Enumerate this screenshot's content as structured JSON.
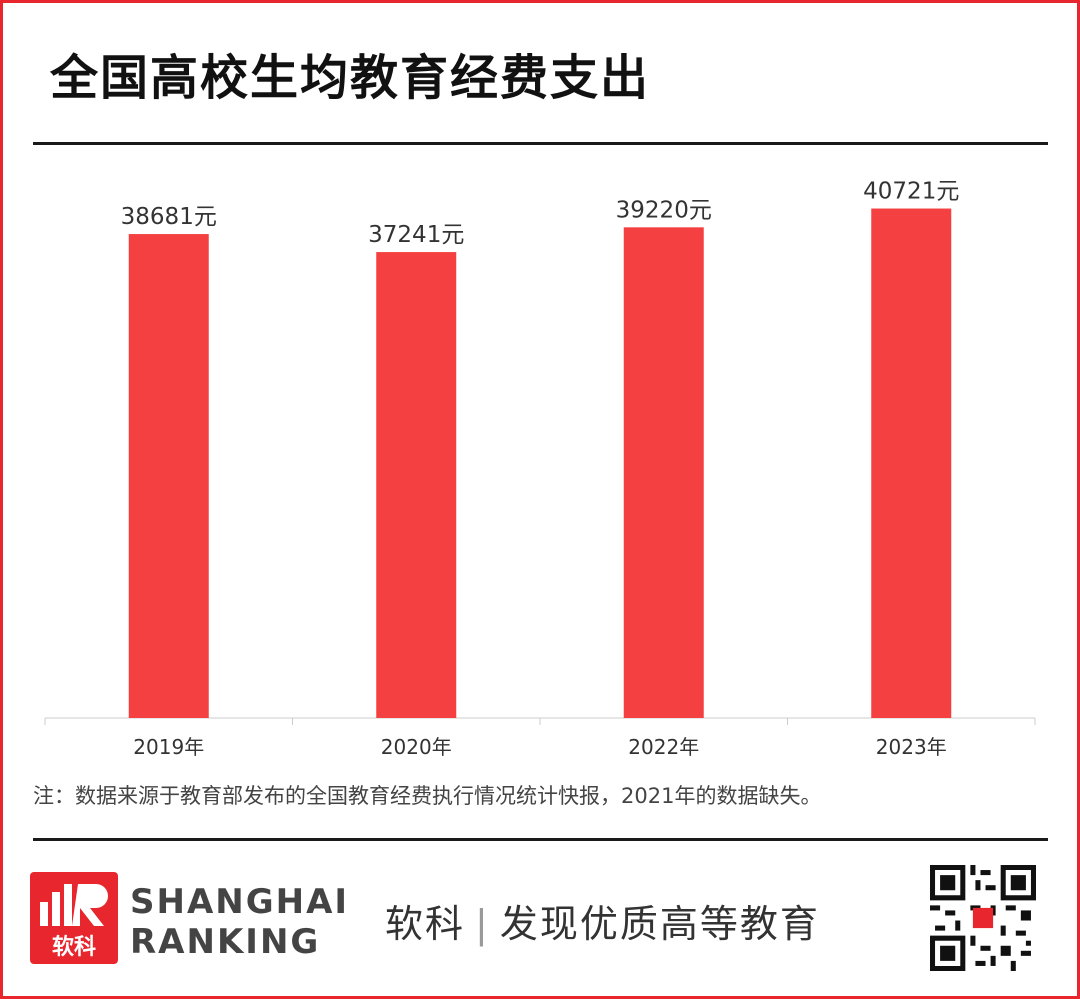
{
  "header": {
    "title": "全国高校生均教育经费支出"
  },
  "chart_data": {
    "type": "bar",
    "categories": [
      "2019年",
      "2020年",
      "2022年",
      "2023年"
    ],
    "values": [
      38681,
      37241,
      39220,
      40721
    ],
    "data_labels": [
      "38681元",
      "37241元",
      "39220元",
      "40721元"
    ],
    "unit": "元",
    "ylim": [
      0,
      45000
    ],
    "grid": false,
    "bar_color": "#f44040"
  },
  "note": "注：数据来源于教育部发布的全国教育经费执行情况统计快报，2021年的数据缺失。",
  "footer": {
    "logo_mark": "软科",
    "logo_line1": "SHANGHAI",
    "logo_line2": "RANKING",
    "slogan_brand": "软科",
    "slogan_sep": "|",
    "slogan_text": "发现优质高等教育"
  },
  "colors": {
    "accent": "#e8262d",
    "bar": "#f44040",
    "text": "#111111"
  }
}
